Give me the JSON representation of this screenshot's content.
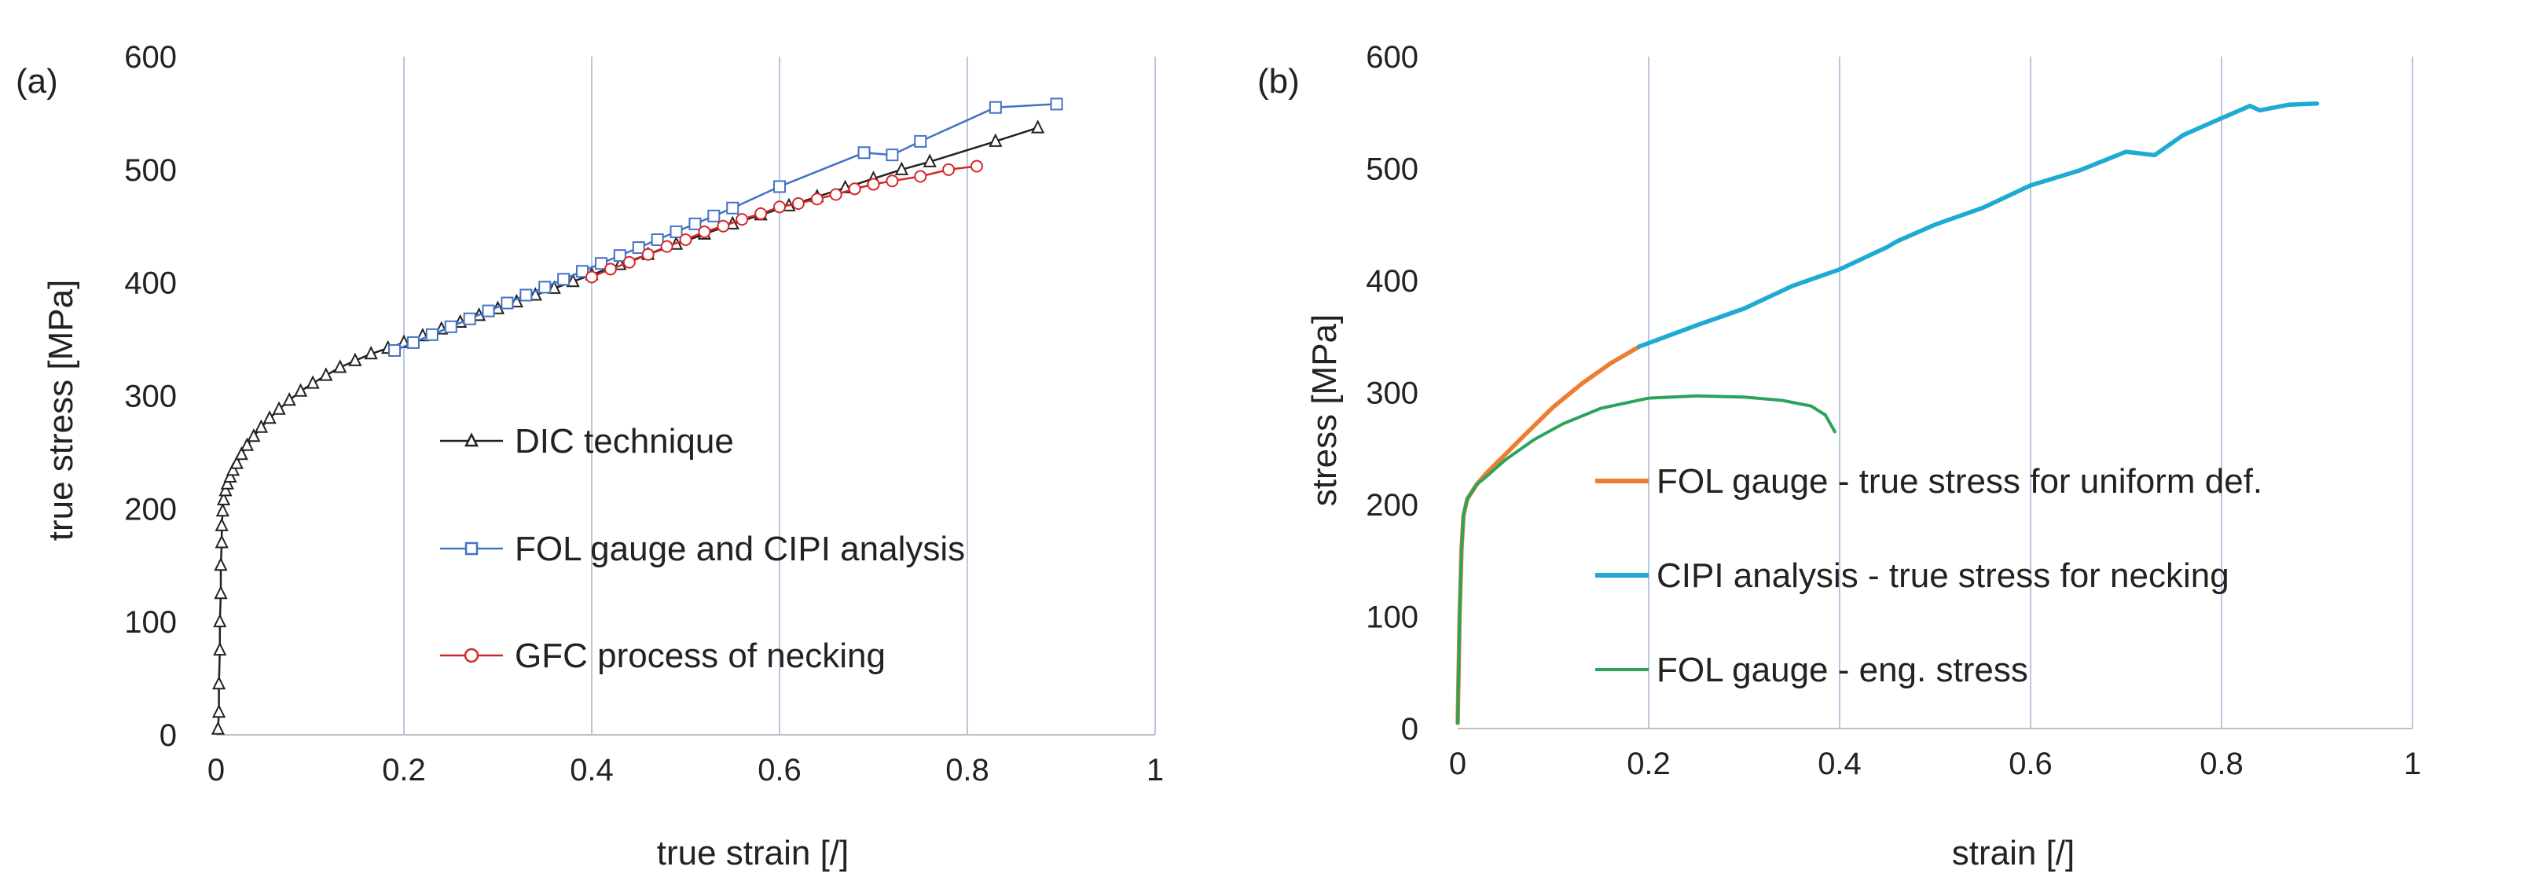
{
  "colors": {
    "dic": "#222222",
    "fol_cipi": "#4472c4",
    "gfc": "#d62728",
    "fol_true": "#ed7d31",
    "cipi_true": "#1eaad2",
    "fol_eng": "#2ca35a",
    "grid": "#b8c7dd"
  },
  "chart_data": [
    {
      "type": "line",
      "panel_label": "(a)",
      "xlabel": "true strain [/]",
      "ylabel": "true stress [MPa]",
      "xlim": [
        0,
        1
      ],
      "ylim": [
        0,
        600
      ],
      "xticks": [
        0,
        0.2,
        0.4,
        0.6,
        0.8,
        1
      ],
      "xtick_labels": [
        "0",
        "0.2",
        "0.4",
        "0.6",
        "0.8",
        "1"
      ],
      "yticks": [
        0,
        100,
        200,
        300,
        400,
        500,
        600
      ],
      "ytick_labels": [
        "0",
        "100",
        "200",
        "300",
        "400",
        "500",
        "600"
      ],
      "vertical_grid": true,
      "legend_position": "center-right",
      "series": [
        {
          "name": "DIC  technique",
          "color_key": "dic",
          "marker": "triangle",
          "x": [
            0.002,
            0.003,
            0.003,
            0.004,
            0.004,
            0.005,
            0.005,
            0.006,
            0.006,
            0.007,
            0.008,
            0.01,
            0.012,
            0.015,
            0.018,
            0.022,
            0.027,
            0.033,
            0.04,
            0.048,
            0.057,
            0.067,
            0.078,
            0.09,
            0.103,
            0.117,
            0.132,
            0.148,
            0.165,
            0.183,
            0.2,
            0.22,
            0.24,
            0.26,
            0.28,
            0.3,
            0.32,
            0.34,
            0.36,
            0.38,
            0.4,
            0.43,
            0.46,
            0.49,
            0.52,
            0.55,
            0.58,
            0.61,
            0.64,
            0.67,
            0.7,
            0.73,
            0.76,
            0.83,
            0.875
          ],
          "y": [
            5,
            20,
            45,
            75,
            100,
            125,
            150,
            170,
            185,
            198,
            208,
            216,
            222,
            228,
            234,
            240,
            248,
            256,
            264,
            272,
            280,
            288,
            296,
            304,
            311,
            318,
            325,
            331,
            337,
            342,
            347,
            353,
            359,
            365,
            371,
            377,
            383,
            389,
            395,
            401,
            407,
            416,
            425,
            434,
            443,
            452,
            460,
            468,
            476,
            484,
            492,
            500,
            507,
            525,
            537
          ]
        },
        {
          "name": "FOL gauge and CIPI analysis",
          "color_key": "fol_cipi",
          "marker": "square",
          "x": [
            0.19,
            0.21,
            0.23,
            0.25,
            0.27,
            0.29,
            0.31,
            0.33,
            0.35,
            0.37,
            0.39,
            0.41,
            0.43,
            0.45,
            0.47,
            0.49,
            0.51,
            0.53,
            0.55,
            0.6,
            0.69,
            0.72,
            0.75,
            0.83,
            0.895
          ],
          "y": [
            340,
            347,
            354,
            361,
            368,
            375,
            382,
            389,
            396,
            403,
            410,
            417,
            424,
            431,
            438,
            445,
            452,
            459,
            466,
            485,
            515,
            513,
            525,
            555,
            558
          ]
        },
        {
          "name": "GFC process of necking",
          "color_key": "gfc",
          "marker": "circle",
          "x": [
            0.4,
            0.42,
            0.44,
            0.46,
            0.48,
            0.5,
            0.52,
            0.54,
            0.56,
            0.58,
            0.6,
            0.62,
            0.64,
            0.66,
            0.68,
            0.7,
            0.72,
            0.75,
            0.78,
            0.81
          ],
          "y": [
            405,
            412,
            418,
            425,
            432,
            438,
            445,
            450,
            456,
            461,
            467,
            470,
            474,
            478,
            483,
            487,
            490,
            494,
            500,
            503
          ]
        }
      ]
    },
    {
      "type": "line",
      "panel_label": "(b)",
      "xlabel": "strain [/]",
      "ylabel": "stress [MPa]",
      "xlim": [
        0,
        1
      ],
      "ylim": [
        0,
        600
      ],
      "xticks": [
        0,
        0.2,
        0.4,
        0.6,
        0.8,
        1
      ],
      "xtick_labels": [
        "0",
        "0.2",
        "0.4",
        "0.6",
        "0.8",
        "1"
      ],
      "yticks": [
        0,
        100,
        200,
        300,
        400,
        500,
        600
      ],
      "ytick_labels": [
        "0",
        "100",
        "200",
        "300",
        "400",
        "500",
        "600"
      ],
      "vertical_grid": true,
      "legend_position": "bottom-right",
      "series": [
        {
          "name": "FOL gauge - true stress for uniform def.",
          "color_key": "fol_true",
          "x": [
            0,
            0.002,
            0.004,
            0.006,
            0.01,
            0.02,
            0.03,
            0.05,
            0.07,
            0.1,
            0.13,
            0.16,
            0.19
          ],
          "y": [
            5,
            100,
            160,
            190,
            205,
            218,
            228,
            245,
            262,
            287,
            308,
            326,
            341
          ]
        },
        {
          "name": "CIPI analysis - true stress for necking",
          "color_key": "cipi_true",
          "x": [
            0.19,
            0.25,
            0.3,
            0.35,
            0.4,
            0.45,
            0.46,
            0.5,
            0.55,
            0.6,
            0.65,
            0.7,
            0.73,
            0.76,
            0.8,
            0.83,
            0.84,
            0.87,
            0.9
          ],
          "y": [
            341,
            360,
            375,
            395,
            410,
            430,
            435,
            450,
            465,
            485,
            498,
            515,
            512,
            530,
            545,
            556,
            552,
            557,
            558
          ]
        },
        {
          "name": "FOL gauge - eng. stress",
          "color_key": "fol_eng",
          "x": [
            0,
            0.002,
            0.004,
            0.006,
            0.01,
            0.02,
            0.03,
            0.05,
            0.08,
            0.11,
            0.15,
            0.2,
            0.25,
            0.3,
            0.34,
            0.37,
            0.385,
            0.395
          ],
          "y": [
            5,
            100,
            160,
            190,
            205,
            218,
            225,
            240,
            258,
            272,
            286,
            295,
            297,
            296,
            293,
            288,
            280,
            265
          ]
        }
      ]
    }
  ]
}
